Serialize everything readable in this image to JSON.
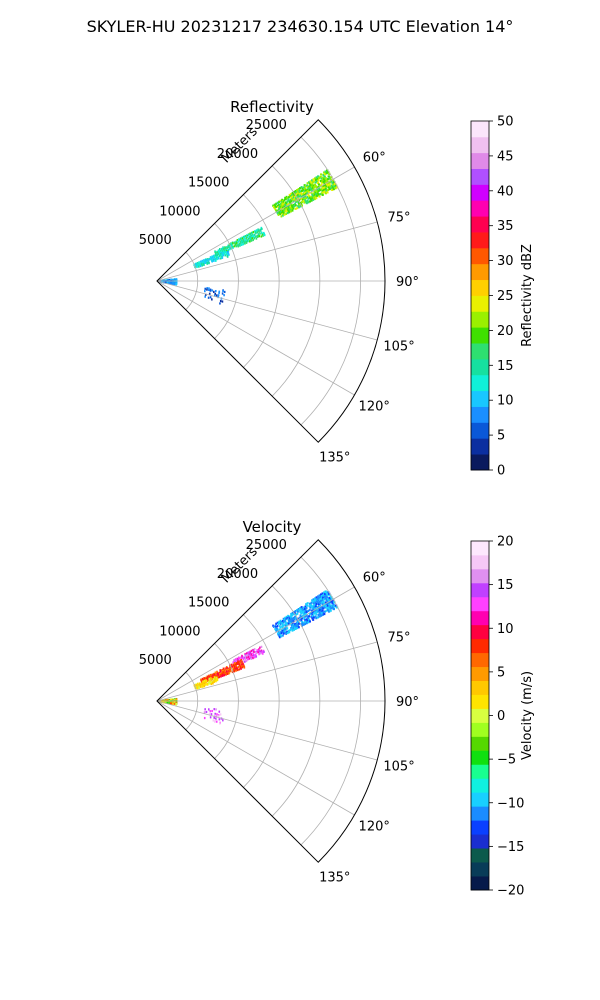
{
  "suptitle": "SKYLER-HU  20231217  234630.154 UTC Elevation 14°",
  "chart_data": [
    {
      "type": "heatmap",
      "projection": "polar-sector",
      "title": "Reflectivity",
      "radial_axis_label": "Meters",
      "radial_ticks": [
        5000,
        10000,
        15000,
        20000,
        25000
      ],
      "radial_tick_labels": [
        "5000",
        "10000",
        "15000",
        "20000",
        "25000"
      ],
      "r_max": 28000,
      "theta_range_deg": [
        45,
        135
      ],
      "theta_ticks_deg": [
        60,
        75,
        90,
        105,
        120,
        135
      ],
      "theta_tick_labels": [
        "60°",
        "75°",
        "90°",
        "105°",
        "120°",
        "135°"
      ],
      "grid": true,
      "colorbar": {
        "label": "Reflectivity dBZ",
        "vmin": 0,
        "vmax": 50,
        "ticks": [
          0,
          5,
          10,
          15,
          20,
          25,
          30,
          35,
          40,
          45,
          50
        ],
        "tick_labels": [
          "0",
          "5",
          "10",
          "15",
          "20",
          "25",
          "30",
          "35",
          "40",
          "45",
          "50"
        ]
      },
      "echo_regions": [
        {
          "theta_deg": [
            57,
            63
          ],
          "r_m": [
            17000,
            25000
          ],
          "value_range": [
            16,
            24
          ],
          "density": 0.82
        },
        {
          "theta_deg": [
            63,
            67
          ],
          "r_m": [
            8000,
            14500
          ],
          "value_range": [
            12,
            19
          ],
          "density": 0.72
        },
        {
          "theta_deg": [
            66,
            71
          ],
          "r_m": [
            5000,
            9500
          ],
          "value_range": [
            9,
            15
          ],
          "density": 0.6
        },
        {
          "theta_deg": [
            84,
            100
          ],
          "r_m": [
            200,
            2500
          ],
          "value_range": [
            5,
            12
          ],
          "density": 0.55
        },
        {
          "theta_deg": [
            98,
            110
          ],
          "r_m": [
            6000,
            8500
          ],
          "value_range": [
            3,
            9
          ],
          "density": 0.1
        }
      ]
    },
    {
      "type": "heatmap",
      "projection": "polar-sector",
      "title": "Velocity",
      "radial_axis_label": "Meters",
      "radial_ticks": [
        5000,
        10000,
        15000,
        20000,
        25000
      ],
      "radial_tick_labels": [
        "5000",
        "10000",
        "15000",
        "20000",
        "25000"
      ],
      "r_max": 28000,
      "theta_range_deg": [
        45,
        135
      ],
      "theta_ticks_deg": [
        60,
        75,
        90,
        105,
        120,
        135
      ],
      "theta_tick_labels": [
        "60°",
        "75°",
        "90°",
        "105°",
        "120°",
        "135°"
      ],
      "grid": true,
      "colorbar": {
        "label": "Velocity (m/s)",
        "vmin": -20,
        "vmax": 20,
        "ticks": [
          -20,
          -15,
          -10,
          -5,
          0,
          5,
          10,
          15,
          20
        ],
        "tick_labels": [
          "−20",
          "−15",
          "−10",
          "−5",
          "0",
          "5",
          "10",
          "15",
          "20"
        ]
      },
      "echo_regions": [
        {
          "theta_deg": [
            57,
            63
          ],
          "r_m": [
            17000,
            25000
          ],
          "value_range": [
            -13,
            -9
          ],
          "density": 0.82
        },
        {
          "theta_deg": [
            62,
            66
          ],
          "r_m": [
            10500,
            14500
          ],
          "value_range": [
            11,
            16
          ],
          "density": 0.6
        },
        {
          "theta_deg": [
            64,
            69
          ],
          "r_m": [
            6000,
            11500
          ],
          "value_range": [
            5,
            10
          ],
          "density": 0.75
        },
        {
          "theta_deg": [
            67,
            73
          ],
          "r_m": [
            5000,
            8000
          ],
          "value_range": [
            0,
            4
          ],
          "density": 0.45
        },
        {
          "theta_deg": [
            84,
            100
          ],
          "r_m": [
            200,
            2500
          ],
          "value_range": [
            -6,
            8
          ],
          "density": 0.55
        },
        {
          "theta_deg": [
            98,
            110
          ],
          "r_m": [
            6000,
            8500
          ],
          "value_range": [
            12,
            18
          ],
          "density": 0.1
        }
      ]
    }
  ]
}
